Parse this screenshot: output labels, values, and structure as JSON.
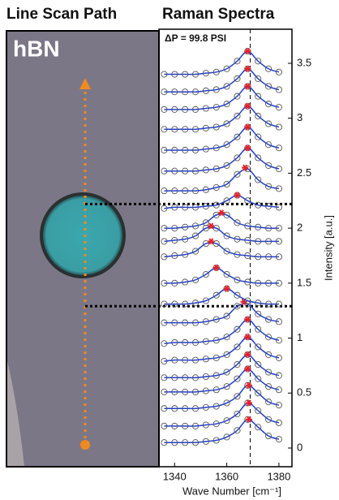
{
  "image_panel": {
    "title": "Line Scan Path",
    "label": "hBN"
  },
  "chart_data": {
    "type": "line",
    "title": "Raman Spectra",
    "annotation": "ΔP = 99.8 PSI",
    "xlabel": "Wave Number [cm⁻¹]",
    "ylabel": "Intensity [a.u.]",
    "xlim": [
      1334,
      1385
    ],
    "xticks": [
      1340,
      1360,
      1380
    ],
    "ylim": [
      -0.17,
      3.81
    ],
    "yticks": [
      0,
      0.5,
      1,
      1.5,
      2,
      2.5,
      3,
      3.5
    ],
    "reference_x": 1369,
    "boundary_lines": [
      2.22,
      1.29
    ],
    "marker_color": "#555555",
    "line_color": "#1f3fd0",
    "peak_color": "#e8202a",
    "x": [
      1336,
      1340,
      1344,
      1348,
      1352,
      1356,
      1360,
      1364,
      1368,
      1372,
      1376,
      1380
    ],
    "series": [
      {
        "values": [
          0.05,
          0.05,
          0.05,
          0.05,
          0.06,
          0.07,
          0.1,
          0.16,
          0.26,
          0.19,
          0.11,
          0.08
        ],
        "peak_x": 1368.5,
        "peak_y": 0.26
      },
      {
        "values": [
          0.2,
          0.2,
          0.2,
          0.2,
          0.21,
          0.22,
          0.25,
          0.31,
          0.41,
          0.34,
          0.26,
          0.23
        ],
        "peak_x": 1368.5,
        "peak_y": 0.41
      },
      {
        "values": [
          0.36,
          0.36,
          0.36,
          0.36,
          0.37,
          0.38,
          0.41,
          0.47,
          0.57,
          0.5,
          0.42,
          0.39
        ],
        "peak_x": 1368.5,
        "peak_y": 0.57
      },
      {
        "values": [
          0.51,
          0.51,
          0.51,
          0.51,
          0.52,
          0.53,
          0.56,
          0.63,
          0.72,
          0.63,
          0.56,
          0.53
        ],
        "peak_x": 1368,
        "peak_y": 0.72
      },
      {
        "values": [
          0.64,
          0.64,
          0.64,
          0.64,
          0.65,
          0.66,
          0.69,
          0.76,
          0.85,
          0.76,
          0.69,
          0.66
        ],
        "peak_x": 1368,
        "peak_y": 0.85
      },
      {
        "values": [
          0.79,
          0.8,
          0.8,
          0.8,
          0.81,
          0.82,
          0.85,
          0.92,
          1.01,
          0.92,
          0.85,
          0.82
        ],
        "peak_x": 1368,
        "peak_y": 1.01
      },
      {
        "values": [
          0.95,
          0.96,
          0.96,
          0.96,
          0.97,
          0.98,
          1.01,
          1.08,
          1.17,
          1.08,
          1.01,
          0.98
        ],
        "peak_x": 1368,
        "peak_y": 1.17
      },
      {
        "values": [
          1.14,
          1.14,
          1.14,
          1.14,
          1.15,
          1.17,
          1.2,
          1.29,
          1.31,
          1.22,
          1.17,
          1.15
        ],
        "peak_x": 1366.5,
        "peak_y": 1.33
      },
      {
        "values": [
          1.31,
          1.31,
          1.31,
          1.32,
          1.34,
          1.39,
          1.45,
          1.39,
          1.34,
          1.32,
          1.31,
          1.31
        ],
        "peak_x": 1360,
        "peak_y": 1.45
      },
      {
        "values": [
          1.5,
          1.5,
          1.51,
          1.53,
          1.58,
          1.64,
          1.58,
          1.53,
          1.51,
          1.5,
          1.5,
          1.5
        ],
        "peak_x": 1356,
        "peak_y": 1.64
      },
      {
        "values": [
          1.74,
          1.75,
          1.76,
          1.79,
          1.86,
          1.86,
          1.79,
          1.76,
          1.75,
          1.74,
          1.74,
          1.74
        ],
        "peak_x": 1354,
        "peak_y": 1.88
      },
      {
        "values": [
          1.88,
          1.89,
          1.9,
          1.93,
          2.0,
          2.0,
          1.93,
          1.9,
          1.89,
          1.88,
          1.88,
          1.88
        ],
        "peak_x": 1354,
        "peak_y": 2.02
      },
      {
        "values": [
          2.0,
          2.0,
          2.01,
          2.02,
          2.05,
          2.12,
          2.12,
          2.05,
          2.02,
          2.01,
          2.0,
          2.0
        ],
        "peak_x": 1358,
        "peak_y": 2.14
      },
      {
        "values": [
          2.18,
          2.19,
          2.19,
          2.19,
          2.2,
          2.21,
          2.25,
          2.3,
          2.25,
          2.21,
          2.2,
          2.19
        ],
        "peak_x": 1364,
        "peak_y": 2.3
      },
      {
        "values": [
          2.34,
          2.34,
          2.34,
          2.34,
          2.35,
          2.37,
          2.4,
          2.49,
          2.54,
          2.44,
          2.38,
          2.36
        ],
        "peak_x": 1367,
        "peak_y": 2.55
      },
      {
        "values": [
          2.52,
          2.52,
          2.52,
          2.52,
          2.53,
          2.54,
          2.57,
          2.64,
          2.73,
          2.64,
          2.57,
          2.54
        ],
        "peak_x": 1368,
        "peak_y": 2.73
      },
      {
        "values": [
          2.71,
          2.71,
          2.71,
          2.71,
          2.72,
          2.73,
          2.76,
          2.83,
          2.92,
          2.83,
          2.76,
          2.73
        ],
        "peak_x": 1368,
        "peak_y": 2.92
      },
      {
        "values": [
          2.9,
          2.9,
          2.9,
          2.9,
          2.91,
          2.92,
          2.95,
          3.02,
          3.11,
          3.02,
          2.95,
          2.92
        ],
        "peak_x": 1368,
        "peak_y": 3.11
      },
      {
        "values": [
          3.08,
          3.08,
          3.08,
          3.08,
          3.09,
          3.1,
          3.13,
          3.2,
          3.29,
          3.2,
          3.13,
          3.1
        ],
        "peak_x": 1368,
        "peak_y": 3.29
      },
      {
        "values": [
          3.24,
          3.24,
          3.24,
          3.24,
          3.25,
          3.26,
          3.29,
          3.36,
          3.45,
          3.36,
          3.29,
          3.26
        ],
        "peak_x": 1368,
        "peak_y": 3.45
      },
      {
        "values": [
          3.4,
          3.4,
          3.4,
          3.4,
          3.41,
          3.42,
          3.45,
          3.52,
          3.61,
          3.52,
          3.45,
          3.42
        ],
        "peak_x": 1368,
        "peak_y": 3.61
      }
    ]
  }
}
